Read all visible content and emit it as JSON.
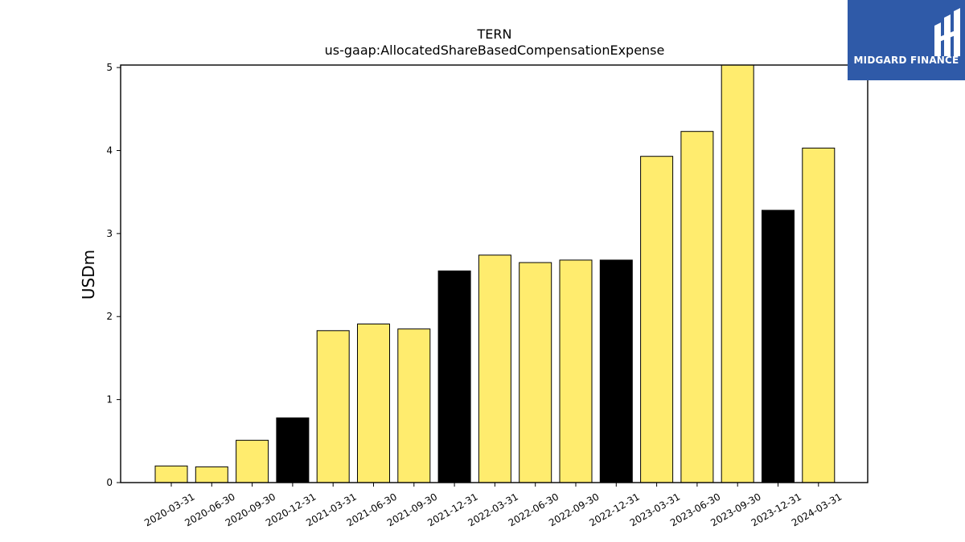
{
  "chart_data": {
    "type": "bar",
    "title": "TERN",
    "subtitle": "us-gaap:AllocatedShareBasedCompensationExpense",
    "ylabel": "USDm",
    "xlabel": "",
    "ylim": [
      0,
      5.03
    ],
    "yticks": [
      0,
      1,
      2,
      3,
      4,
      5
    ],
    "grid": false,
    "categories": [
      "2020-03-31",
      "2020-06-30",
      "2020-09-30",
      "2020-12-31",
      "2021-03-31",
      "2021-06-30",
      "2021-09-30",
      "2021-12-31",
      "2022-03-31",
      "2022-06-30",
      "2022-09-30",
      "2022-12-31",
      "2023-03-31",
      "2023-06-30",
      "2023-09-30",
      "2023-12-31",
      "2024-03-31"
    ],
    "values": [
      0.2,
      0.19,
      0.51,
      0.78,
      1.83,
      1.91,
      1.85,
      2.55,
      2.74,
      2.65,
      2.68,
      2.68,
      3.93,
      4.23,
      5.05,
      3.28,
      4.03
    ],
    "bar_colors": [
      "#ffec6e",
      "#ffec6e",
      "#ffec6e",
      "#000000",
      "#ffec6e",
      "#ffec6e",
      "#ffec6e",
      "#000000",
      "#ffec6e",
      "#ffec6e",
      "#ffec6e",
      "#000000",
      "#ffec6e",
      "#ffec6e",
      "#ffec6e",
      "#000000",
      "#ffec6e"
    ]
  },
  "logo": {
    "text": "MIDGARD FINANCE",
    "background": "#2f5aa8"
  }
}
